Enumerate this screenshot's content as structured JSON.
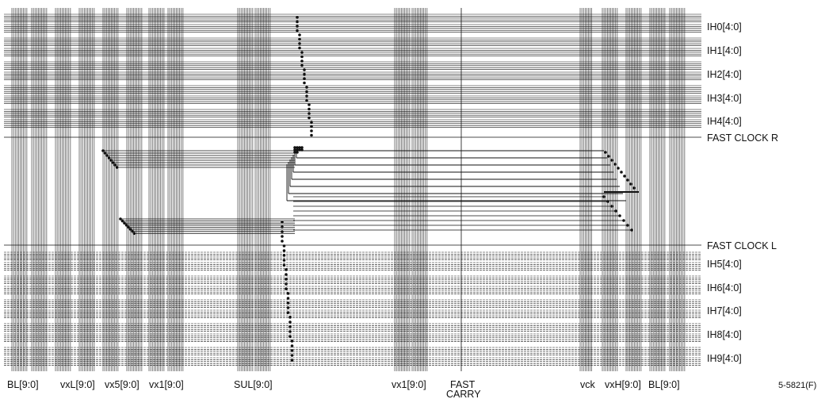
{
  "right_labels": [
    "IH0[4:0]",
    "IH1[4:0]",
    "IH2[4:0]",
    "IH3[4:0]",
    "IH4[4:0]",
    "FAST CLOCK R",
    "FAST CLOCK L",
    "IH5[4:0]",
    "IH6[4:0]",
    "IH7[4:0]",
    "IH8[4:0]",
    "IH9[4:0]"
  ],
  "bottom_labels": [
    "BL[9:0]",
    "vxL[9:0]",
    "vx5[9:0]",
    "vx1[9:0]",
    "SUL[9:0]",
    "vx1[9:0]",
    "FAST",
    "CARRY",
    "vck",
    "vxH[9:0]",
    "BL[9:0]"
  ],
  "figure_id": "5-5821(F)",
  "line_color": "#111111"
}
